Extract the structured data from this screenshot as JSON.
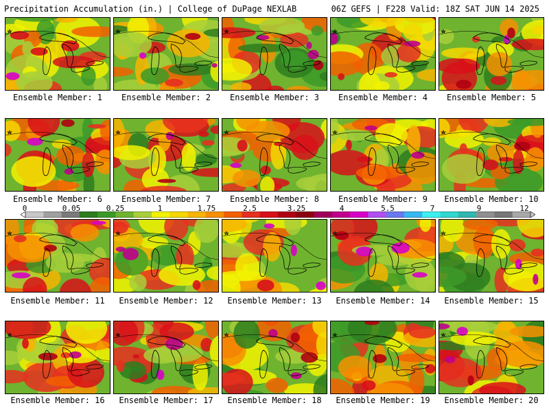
{
  "header": {
    "left_title": "Precipitation Accumulation (in.) | College of DuPage NEXLAB",
    "right_title": "06Z GEFS | F228 Valid: 18Z SAT JUN 14 2025"
  },
  "member_label_prefix": "Ensemble Member: ",
  "members": [
    {
      "id": "1",
      "label": "Ensemble Member: 1"
    },
    {
      "id": "2",
      "label": "Ensemble Member: 2"
    },
    {
      "id": "3",
      "label": "Ensemble Member: 3"
    },
    {
      "id": "4",
      "label": "Ensemble Member: 4"
    },
    {
      "id": "5",
      "label": "Ensemble Member: 5"
    },
    {
      "id": "6",
      "label": "Ensemble Member: 6"
    },
    {
      "id": "7",
      "label": "Ensemble Member: 7"
    },
    {
      "id": "8",
      "label": "Ensemble Member: 8"
    },
    {
      "id": "9",
      "label": "Ensemble Member: 9"
    },
    {
      "id": "10",
      "label": "Ensemble Member: 10"
    },
    {
      "id": "11",
      "label": "Ensemble Member: 11"
    },
    {
      "id": "12",
      "label": "Ensemble Member: 12"
    },
    {
      "id": "13",
      "label": "Ensemble Member: 13"
    },
    {
      "id": "14",
      "label": "Ensemble Member: 14"
    },
    {
      "id": "15",
      "label": "Ensemble Member: 15"
    },
    {
      "id": "16",
      "label": "Ensemble Member: 16"
    },
    {
      "id": "17",
      "label": "Ensemble Member: 17"
    },
    {
      "id": "18",
      "label": "Ensemble Member: 18"
    },
    {
      "id": "19",
      "label": "Ensemble Member: 19"
    },
    {
      "id": "20",
      "label": "Ensemble Member: 20"
    }
  ],
  "colorbar": {
    "tick_labels": [
      "0",
      "0.05",
      "0.25",
      "1",
      "1.75",
      "2.5",
      "3.25",
      "4",
      "5.5",
      "7",
      "9",
      "12"
    ],
    "colors": [
      "#c8c8c8",
      "#a0a0a0",
      "#7a7a7a",
      "#2e7d1e",
      "#3c9a28",
      "#6fb32f",
      "#a8cf3a",
      "#f2f200",
      "#f5d800",
      "#f7b400",
      "#f79000",
      "#f26000",
      "#e63020",
      "#d8101a",
      "#b00012",
      "#8c0010",
      "#a0005a",
      "#c0008c",
      "#d800c8",
      "#b050f0",
      "#6a78f0",
      "#38b8f0",
      "#40f0f0",
      "#30d8d0",
      "#30b8b0",
      "#909090",
      "#787878",
      "#a8a8a8"
    ]
  },
  "map_style": {
    "base_color": "#6fb32f",
    "outline_color": "#000000"
  }
}
